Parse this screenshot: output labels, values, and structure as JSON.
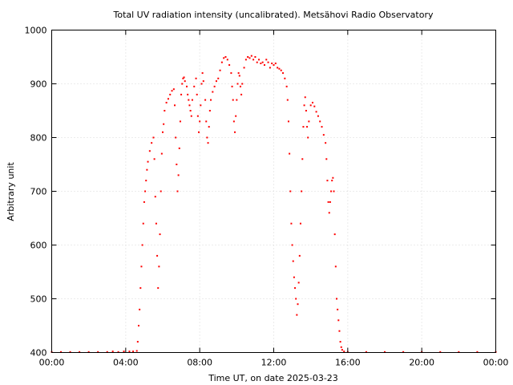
{
  "chart_data": {
    "type": "scatter",
    "title": "Total UV radiation intensity (uncalibrated). Metsähovi Radio Observatory",
    "xlabel": "Time UT, on date 2025-03-23",
    "ylabel": "Arbitrary unit",
    "xlim": [
      0,
      24
    ],
    "ylim": [
      400,
      1000
    ],
    "x_ticks": [
      0,
      4,
      8,
      12,
      16,
      20,
      24
    ],
    "x_tick_labels": [
      "00:00",
      "04:00",
      "08:00",
      "12:00",
      "16:00",
      "20:00",
      "00:00"
    ],
    "y_ticks": [
      400,
      500,
      600,
      700,
      800,
      900,
      1000
    ],
    "y_tick_labels": [
      "400",
      "500",
      "600",
      "700",
      "800",
      "900",
      "1000"
    ],
    "grid": true,
    "marker_color": "#ff0000",
    "series": [
      {
        "points": [
          [
            0.0,
            401
          ],
          [
            0.5,
            401
          ],
          [
            1.0,
            401
          ],
          [
            1.5,
            401
          ],
          [
            2.0,
            401
          ],
          [
            2.5,
            401
          ],
          [
            3.0,
            401
          ],
          [
            3.3,
            402
          ],
          [
            3.6,
            401
          ],
          [
            3.9,
            402
          ],
          [
            4.2,
            402
          ],
          [
            4.4,
            402
          ],
          [
            4.6,
            403
          ],
          [
            4.65,
            420
          ],
          [
            4.7,
            450
          ],
          [
            4.75,
            480
          ],
          [
            4.8,
            520
          ],
          [
            4.85,
            560
          ],
          [
            4.9,
            600
          ],
          [
            4.95,
            640
          ],
          [
            5.0,
            680
          ],
          [
            5.05,
            700
          ],
          [
            5.1,
            720
          ],
          [
            5.15,
            740
          ],
          [
            5.2,
            755
          ],
          [
            5.3,
            775
          ],
          [
            5.4,
            790
          ],
          [
            5.5,
            800
          ],
          [
            5.55,
            760
          ],
          [
            5.6,
            690
          ],
          [
            5.65,
            640
          ],
          [
            5.7,
            580
          ],
          [
            5.75,
            520
          ],
          [
            5.8,
            560
          ],
          [
            5.85,
            620
          ],
          [
            5.9,
            700
          ],
          [
            5.95,
            770
          ],
          [
            6.0,
            810
          ],
          [
            6.05,
            825
          ],
          [
            6.1,
            850
          ],
          [
            6.2,
            865
          ],
          [
            6.3,
            872
          ],
          [
            6.4,
            880
          ],
          [
            6.5,
            887
          ],
          [
            6.6,
            890
          ],
          [
            6.65,
            860
          ],
          [
            6.7,
            800
          ],
          [
            6.75,
            750
          ],
          [
            6.8,
            700
          ],
          [
            6.85,
            730
          ],
          [
            6.9,
            780
          ],
          [
            6.95,
            830
          ],
          [
            7.0,
            880
          ],
          [
            7.05,
            900
          ],
          [
            7.1,
            910
          ],
          [
            7.15,
            912
          ],
          [
            7.2,
            905
          ],
          [
            7.3,
            895
          ],
          [
            7.35,
            880
          ],
          [
            7.4,
            870
          ],
          [
            7.45,
            860
          ],
          [
            7.5,
            850
          ],
          [
            7.55,
            840
          ],
          [
            7.6,
            870
          ],
          [
            7.7,
            895
          ],
          [
            7.8,
            910
          ],
          [
            7.85,
            880
          ],
          [
            7.9,
            840
          ],
          [
            7.95,
            810
          ],
          [
            8.0,
            830
          ],
          [
            8.05,
            860
          ],
          [
            8.1,
            900
          ],
          [
            8.15,
            920
          ],
          [
            8.2,
            905
          ],
          [
            8.3,
            870
          ],
          [
            8.35,
            830
          ],
          [
            8.4,
            800
          ],
          [
            8.45,
            790
          ],
          [
            8.5,
            820
          ],
          [
            8.55,
            850
          ],
          [
            8.6,
            870
          ],
          [
            8.7,
            885
          ],
          [
            8.8,
            895
          ],
          [
            8.9,
            905
          ],
          [
            9.0,
            910
          ],
          [
            9.1,
            925
          ],
          [
            9.2,
            940
          ],
          [
            9.3,
            948
          ],
          [
            9.4,
            950
          ],
          [
            9.5,
            945
          ],
          [
            9.6,
            935
          ],
          [
            9.7,
            920
          ],
          [
            9.75,
            895
          ],
          [
            9.8,
            870
          ],
          [
            9.85,
            830
          ],
          [
            9.9,
            810
          ],
          [
            9.95,
            840
          ],
          [
            10.0,
            870
          ],
          [
            10.05,
            900
          ],
          [
            10.1,
            920
          ],
          [
            10.15,
            915
          ],
          [
            10.2,
            895
          ],
          [
            10.25,
            880
          ],
          [
            10.3,
            900
          ],
          [
            10.4,
            930
          ],
          [
            10.5,
            945
          ],
          [
            10.6,
            950
          ],
          [
            10.7,
            948
          ],
          [
            10.8,
            952
          ],
          [
            10.9,
            945
          ],
          [
            11.0,
            950
          ],
          [
            11.1,
            940
          ],
          [
            11.2,
            945
          ],
          [
            11.3,
            938
          ],
          [
            11.4,
            940
          ],
          [
            11.5,
            935
          ],
          [
            11.6,
            945
          ],
          [
            11.7,
            940
          ],
          [
            11.8,
            930
          ],
          [
            11.9,
            938
          ],
          [
            12.0,
            935
          ],
          [
            12.1,
            938
          ],
          [
            12.2,
            930
          ],
          [
            12.3,
            928
          ],
          [
            12.4,
            925
          ],
          [
            12.5,
            920
          ],
          [
            12.6,
            910
          ],
          [
            12.7,
            895
          ],
          [
            12.75,
            870
          ],
          [
            12.8,
            830
          ],
          [
            12.85,
            770
          ],
          [
            12.9,
            700
          ],
          [
            12.95,
            640
          ],
          [
            13.0,
            600
          ],
          [
            13.05,
            570
          ],
          [
            13.1,
            540
          ],
          [
            13.15,
            520
          ],
          [
            13.2,
            500
          ],
          [
            13.25,
            470
          ],
          [
            13.3,
            490
          ],
          [
            13.35,
            530
          ],
          [
            13.4,
            580
          ],
          [
            13.45,
            640
          ],
          [
            13.5,
            700
          ],
          [
            13.55,
            760
          ],
          [
            13.6,
            820
          ],
          [
            13.65,
            860
          ],
          [
            13.7,
            875
          ],
          [
            13.75,
            850
          ],
          [
            13.8,
            820
          ],
          [
            13.85,
            800
          ],
          [
            13.9,
            830
          ],
          [
            14.0,
            860
          ],
          [
            14.1,
            865
          ],
          [
            14.2,
            858
          ],
          [
            14.3,
            848
          ],
          [
            14.4,
            840
          ],
          [
            14.5,
            830
          ],
          [
            14.6,
            820
          ],
          [
            14.7,
            805
          ],
          [
            14.8,
            790
          ],
          [
            14.85,
            760
          ],
          [
            14.9,
            720
          ],
          [
            14.95,
            680
          ],
          [
            15.0,
            660
          ],
          [
            15.05,
            680
          ],
          [
            15.1,
            700
          ],
          [
            15.15,
            720
          ],
          [
            15.2,
            725
          ],
          [
            15.25,
            700
          ],
          [
            15.3,
            620
          ],
          [
            15.35,
            560
          ],
          [
            15.4,
            500
          ],
          [
            15.45,
            480
          ],
          [
            15.5,
            460
          ],
          [
            15.55,
            440
          ],
          [
            15.6,
            420
          ],
          [
            15.65,
            410
          ],
          [
            15.7,
            405
          ],
          [
            15.8,
            402
          ],
          [
            16.0,
            401
          ],
          [
            17.0,
            401
          ],
          [
            18.0,
            401
          ],
          [
            19.0,
            401
          ],
          [
            20.0,
            401
          ],
          [
            21.0,
            401
          ],
          [
            22.0,
            401
          ],
          [
            23.0,
            401
          ],
          [
            24.0,
            401
          ]
        ]
      }
    ]
  }
}
